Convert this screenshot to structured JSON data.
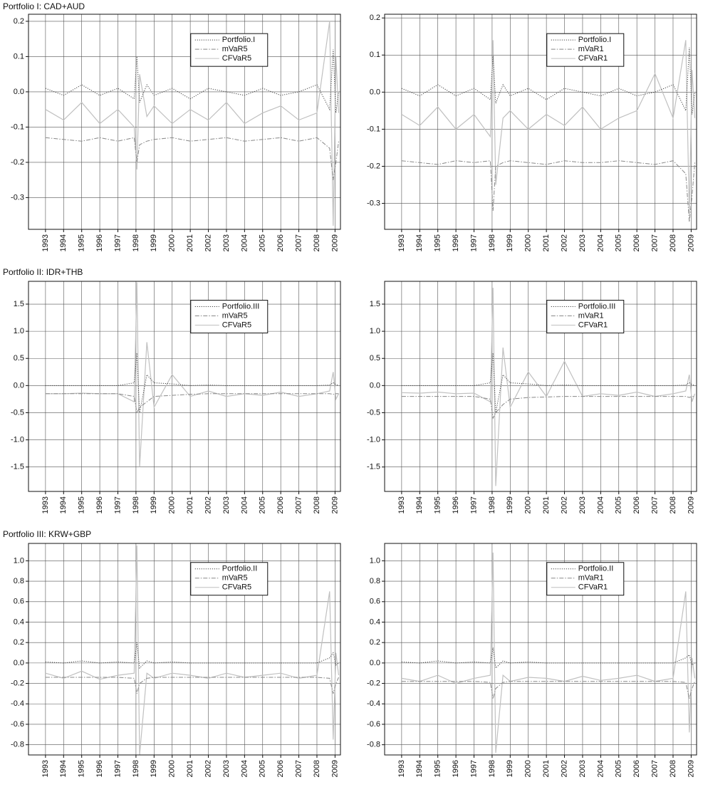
{
  "chart_data": [
    {
      "type": "line",
      "title": "Portfolio I: CAD+AUD",
      "x": [
        1993,
        1994,
        1995,
        1996,
        1997,
        1997.9,
        1998.05,
        1998.2,
        1998.6,
        1999,
        2000,
        2001,
        2002,
        2003,
        2004,
        2005,
        2006,
        2007,
        2008,
        2008.7,
        2008.9,
        2009.05,
        2009.2
      ],
      "series": [
        {
          "name": "Portfolio.I",
          "color": "#444444",
          "style": "dotted",
          "values": [
            0.01,
            -0.01,
            0.02,
            -0.01,
            0.01,
            -0.02,
            0.1,
            -0.03,
            0.02,
            -0.01,
            0.01,
            -0.02,
            0.01,
            0.0,
            -0.01,
            0.01,
            -0.01,
            0.0,
            0.02,
            -0.05,
            0.12,
            -0.06,
            0.0
          ]
        },
        {
          "name": "mVaR5",
          "color": "#888888",
          "style": "dashdot",
          "values": [
            -0.13,
            -0.135,
            -0.14,
            -0.13,
            -0.14,
            -0.13,
            -0.2,
            -0.15,
            -0.14,
            -0.135,
            -0.13,
            -0.14,
            -0.135,
            -0.13,
            -0.14,
            -0.135,
            -0.13,
            -0.14,
            -0.13,
            -0.16,
            -0.25,
            -0.2,
            -0.14
          ]
        },
        {
          "name": "CFVaR5",
          "color": "#c0c0c0",
          "style": "solid",
          "values": [
            -0.05,
            -0.08,
            -0.03,
            -0.09,
            -0.05,
            -0.1,
            -0.22,
            0.05,
            -0.07,
            -0.04,
            -0.09,
            -0.05,
            -0.08,
            -0.03,
            -0.09,
            -0.06,
            -0.04,
            -0.08,
            -0.06,
            0.2,
            -0.38,
            0.1,
            -0.06
          ]
        }
      ],
      "xlim": [
        1992.06,
        2009.3
      ],
      "ylim": [
        -0.39,
        0.22
      ],
      "xticks": [
        1993,
        1994,
        1995,
        1996,
        1997,
        1998,
        1999,
        2000,
        2001,
        2002,
        2003,
        2004,
        2005,
        2006,
        2007,
        2008,
        2009
      ],
      "yticks": [
        -0.3,
        -0.2,
        -0.1,
        {
          "value": 0,
          "label": "0.0"
        },
        0.1,
        0.2
      ],
      "grid": true
    },
    {
      "type": "line",
      "x": [
        1993,
        1994,
        1995,
        1996,
        1997,
        1997.9,
        1998.05,
        1998.2,
        1998.6,
        1999,
        2000,
        2001,
        2002,
        2003,
        2004,
        2005,
        2006,
        2007,
        2008,
        2008.7,
        2008.9,
        2009.05,
        2009.2
      ],
      "series": [
        {
          "name": "Portfolio.I",
          "color": "#444444",
          "style": "dotted",
          "values": [
            0.01,
            -0.01,
            0.02,
            -0.01,
            0.01,
            -0.02,
            0.1,
            -0.03,
            0.02,
            -0.01,
            0.01,
            -0.02,
            0.01,
            0.0,
            -0.01,
            0.01,
            -0.01,
            0.0,
            0.02,
            -0.05,
            0.12,
            -0.06,
            0.0
          ]
        },
        {
          "name": "mVaR1",
          "color": "#888888",
          "style": "dashdot",
          "values": [
            -0.185,
            -0.19,
            -0.195,
            -0.185,
            -0.19,
            -0.185,
            -0.32,
            -0.2,
            -0.19,
            -0.185,
            -0.19,
            -0.195,
            -0.185,
            -0.19,
            -0.19,
            -0.185,
            -0.19,
            -0.195,
            -0.185,
            -0.22,
            -0.35,
            -0.28,
            -0.19
          ]
        },
        {
          "name": "CFVaR1",
          "color": "#c0c0c0",
          "style": "solid",
          "values": [
            -0.06,
            -0.09,
            -0.04,
            -0.1,
            -0.06,
            -0.12,
            0.14,
            -0.25,
            -0.07,
            -0.05,
            -0.1,
            -0.06,
            -0.09,
            -0.04,
            -0.1,
            -0.07,
            -0.05,
            0.05,
            -0.07,
            0.14,
            -0.33,
            0.06,
            -0.07
          ]
        }
      ],
      "xlim": [
        1992.06,
        2009.3
      ],
      "ylim": [
        -0.37,
        0.21
      ],
      "xticks": [
        1993,
        1994,
        1995,
        1996,
        1997,
        1998,
        1999,
        2000,
        2001,
        2002,
        2003,
        2004,
        2005,
        2006,
        2007,
        2008,
        2009
      ],
      "yticks": [
        -0.3,
        -0.2,
        -0.1,
        {
          "value": 0,
          "label": "0.0"
        },
        0.1,
        0.2
      ],
      "grid": true
    },
    {
      "type": "line",
      "title": "Portfolio II: IDR+THB",
      "x": [
        1993,
        1994,
        1995,
        1996,
        1997,
        1997.9,
        1998.05,
        1998.2,
        1998.6,
        1999,
        2000,
        2001,
        2002,
        2003,
        2004,
        2005,
        2006,
        2007,
        2008,
        2008.7,
        2008.9,
        2009.05,
        2009.2
      ],
      "series": [
        {
          "name": "Portfolio.III",
          "color": "#444444",
          "style": "dotted",
          "values": [
            0,
            0,
            0,
            0,
            0,
            0.05,
            0.6,
            -0.5,
            0.2,
            0.05,
            0.03,
            0,
            0.01,
            0,
            0,
            0,
            0,
            0,
            0,
            0.01,
            0.05,
            0.02,
            0
          ]
        },
        {
          "name": "mVaR5",
          "color": "#888888",
          "style": "dashdot",
          "values": [
            -0.15,
            -0.15,
            -0.15,
            -0.15,
            -0.15,
            -0.2,
            -0.5,
            -0.4,
            -0.3,
            -0.2,
            -0.18,
            -0.16,
            -0.15,
            -0.15,
            -0.15,
            -0.15,
            -0.15,
            -0.15,
            -0.15,
            -0.15,
            -0.16,
            -0.15,
            -0.15
          ]
        },
        {
          "name": "CFVaR5",
          "color": "#c0c0c0",
          "style": "solid",
          "values": [
            -0.15,
            -0.15,
            -0.14,
            -0.15,
            -0.15,
            -0.3,
            1.9,
            -1.5,
            0.8,
            -0.4,
            0.2,
            -0.2,
            -0.1,
            -0.2,
            -0.15,
            -0.18,
            -0.12,
            -0.2,
            -0.15,
            -0.1,
            0.25,
            -0.25,
            -0.15
          ]
        }
      ],
      "xlim": [
        1992.06,
        2009.3
      ],
      "ylim": [
        -1.95,
        1.92
      ],
      "xticks": [
        1993,
        1994,
        1995,
        1996,
        1997,
        1998,
        1999,
        2000,
        2001,
        2002,
        2003,
        2004,
        2005,
        2006,
        2007,
        2008,
        2009
      ],
      "yticks": [
        -1.5,
        {
          "value": -1,
          "label": "-1.0"
        },
        -0.5,
        {
          "value": 0,
          "label": "0.0"
        },
        0.5,
        {
          "value": 1,
          "label": "1.0"
        },
        1.5
      ],
      "grid": true
    },
    {
      "type": "line",
      "x": [
        1993,
        1994,
        1995,
        1996,
        1997,
        1997.9,
        1998.05,
        1998.2,
        1998.6,
        1999,
        2000,
        2001,
        2002,
        2003,
        2004,
        2005,
        2006,
        2007,
        2008,
        2008.7,
        2008.9,
        2009.05,
        2009.2
      ],
      "series": [
        {
          "name": "Portfolio.III",
          "color": "#444444",
          "style": "dotted",
          "values": [
            0,
            0,
            0,
            0,
            0,
            0.05,
            0.6,
            -0.5,
            0.2,
            0.05,
            0.03,
            0,
            0.01,
            0,
            0,
            0,
            0,
            0,
            0,
            0.01,
            0.05,
            0.02,
            0
          ]
        },
        {
          "name": "mVaR1",
          "color": "#888888",
          "style": "dashdot",
          "values": [
            -0.2,
            -0.2,
            -0.2,
            -0.2,
            -0.2,
            -0.25,
            -0.6,
            -0.5,
            -0.35,
            -0.25,
            -0.22,
            -0.21,
            -0.2,
            -0.2,
            -0.2,
            -0.2,
            -0.2,
            -0.2,
            -0.2,
            -0.2,
            -0.22,
            -0.2,
            -0.2
          ]
        },
        {
          "name": "CFVaR1",
          "color": "#c0c0c0",
          "style": "solid",
          "values": [
            -0.13,
            -0.14,
            -0.12,
            -0.15,
            -0.14,
            -0.3,
            1.8,
            -1.85,
            0.7,
            -0.4,
            0.25,
            -0.2,
            0.45,
            -0.2,
            -0.15,
            -0.18,
            -0.12,
            -0.2,
            -0.15,
            -0.1,
            0.2,
            -0.3,
            -0.15
          ]
        }
      ],
      "xlim": [
        1992.06,
        2009.3
      ],
      "ylim": [
        -1.95,
        1.92
      ],
      "xticks": [
        1993,
        1994,
        1995,
        1996,
        1997,
        1998,
        1999,
        2000,
        2001,
        2002,
        2003,
        2004,
        2005,
        2006,
        2007,
        2008,
        2009
      ],
      "yticks": [
        -1.5,
        {
          "value": -1,
          "label": "-1.0"
        },
        -0.5,
        {
          "value": 0,
          "label": "0.0"
        },
        0.5,
        {
          "value": 1,
          "label": "1.0"
        },
        1.5
      ],
      "grid": true
    },
    {
      "type": "line",
      "title": "Portfolio III: KRW+GBP",
      "x": [
        1993,
        1994,
        1995,
        1996,
        1997,
        1997.9,
        1998.05,
        1998.2,
        1998.6,
        1999,
        2000,
        2001,
        2002,
        2003,
        2004,
        2005,
        2006,
        2007,
        2008,
        2008.7,
        2008.9,
        2009.05,
        2009.2
      ],
      "series": [
        {
          "name": "Portfolio.II",
          "color": "#444444",
          "style": "dotted",
          "values": [
            0.01,
            0,
            0.02,
            0,
            0.01,
            0,
            0.2,
            -0.05,
            0.02,
            0,
            0.01,
            0,
            0,
            0,
            0,
            0,
            0,
            0,
            0,
            0.05,
            0.1,
            -0.02,
            0
          ]
        },
        {
          "name": "mVaR5",
          "color": "#888888",
          "style": "dashdot",
          "values": [
            -0.14,
            -0.14,
            -0.14,
            -0.14,
            -0.14,
            -0.15,
            -0.3,
            -0.2,
            -0.15,
            -0.14,
            -0.14,
            -0.14,
            -0.14,
            -0.14,
            -0.14,
            -0.14,
            -0.14,
            -0.14,
            -0.14,
            -0.15,
            -0.3,
            -0.2,
            -0.14
          ]
        },
        {
          "name": "CFVaR5",
          "color": "#c0c0c0",
          "style": "solid",
          "values": [
            -0.1,
            -0.15,
            -0.08,
            -0.16,
            -0.12,
            -0.1,
            1.15,
            -0.9,
            -0.1,
            -0.15,
            -0.1,
            -0.12,
            -0.15,
            -0.1,
            -0.14,
            -0.12,
            -0.1,
            -0.15,
            -0.12,
            0.7,
            -0.75,
            0.1,
            -0.12
          ]
        }
      ],
      "xlim": [
        1992.06,
        2009.3
      ],
      "ylim": [
        -0.9,
        1.17
      ],
      "xticks": [
        1993,
        1994,
        1995,
        1996,
        1997,
        1998,
        1999,
        2000,
        2001,
        2002,
        2003,
        2004,
        2005,
        2006,
        2007,
        2008,
        2009
      ],
      "yticks": [
        -0.8,
        -0.6,
        -0.4,
        -0.2,
        {
          "value": 0,
          "label": "0.0"
        },
        0.2,
        0.4,
        0.6,
        0.8,
        {
          "value": 1,
          "label": "1.0"
        }
      ],
      "grid": true
    },
    {
      "type": "line",
      "x": [
        1993,
        1994,
        1995,
        1996,
        1997,
        1997.9,
        1998.05,
        1998.2,
        1998.6,
        1999,
        2000,
        2001,
        2002,
        2003,
        2004,
        2005,
        2006,
        2007,
        2008,
        2008.7,
        2008.9,
        2009.05,
        2009.2
      ],
      "series": [
        {
          "name": "Portfolio.II",
          "color": "#444444",
          "style": "dotted",
          "values": [
            0.01,
            0,
            0.02,
            0,
            0.01,
            0,
            0.15,
            -0.05,
            0.02,
            0,
            0.01,
            0,
            0,
            0,
            0,
            0,
            0,
            0,
            0,
            0.05,
            0.08,
            -0.02,
            0
          ]
        },
        {
          "name": "mVaR1",
          "color": "#888888",
          "style": "dashdot",
          "values": [
            -0.18,
            -0.18,
            -0.18,
            -0.18,
            -0.18,
            -0.19,
            -0.35,
            -0.25,
            -0.19,
            -0.18,
            -0.18,
            -0.18,
            -0.18,
            -0.18,
            -0.18,
            -0.18,
            -0.18,
            -0.18,
            -0.18,
            -0.19,
            -0.35,
            -0.25,
            -0.18
          ]
        },
        {
          "name": "CFVaR1",
          "color": "#c0c0c0",
          "style": "solid",
          "values": [
            -0.15,
            -0.18,
            -0.12,
            -0.2,
            -0.15,
            -0.12,
            1.08,
            -0.88,
            -0.12,
            -0.18,
            -0.14,
            -0.15,
            -0.18,
            -0.13,
            -0.17,
            -0.15,
            -0.12,
            -0.18,
            -0.15,
            0.7,
            -0.68,
            0.05,
            -0.15
          ]
        }
      ],
      "xlim": [
        1992.06,
        2009.3
      ],
      "ylim": [
        -0.9,
        1.17
      ],
      "xticks": [
        1993,
        1994,
        1995,
        1996,
        1997,
        1998,
        1999,
        2000,
        2001,
        2002,
        2003,
        2004,
        2005,
        2006,
        2007,
        2008,
        2009
      ],
      "yticks": [
        -0.8,
        -0.6,
        -0.4,
        -0.2,
        {
          "value": 0,
          "label": "0.0"
        },
        0.2,
        0.4,
        0.6,
        0.8,
        {
          "value": 1,
          "label": "1.0"
        }
      ],
      "grid": true
    }
  ]
}
